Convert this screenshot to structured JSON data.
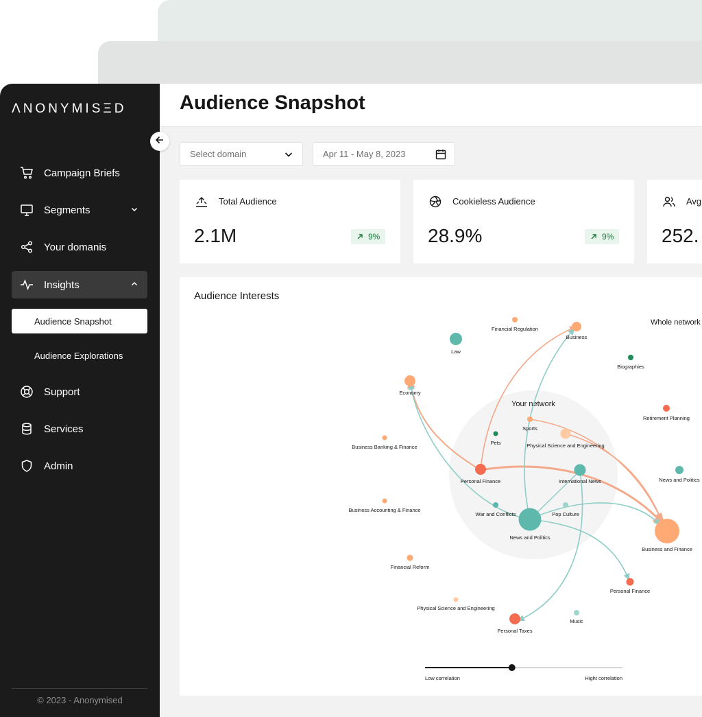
{
  "app": {
    "logo": "ΛNONYMISΞD",
    "footer": "© 2023 - Anonymised"
  },
  "sidebar": {
    "items": [
      {
        "label": "Campaign Briefs",
        "icon": "cart-icon"
      },
      {
        "label": "Segments",
        "icon": "monitor-icon",
        "expandable": true
      },
      {
        "label": "Your domanis",
        "icon": "share-icon"
      },
      {
        "label": "Insights",
        "icon": "activity-icon",
        "expanded": true,
        "active": true
      },
      {
        "label": "Support",
        "icon": "lifebuoy-icon"
      },
      {
        "label": "Services",
        "icon": "database-icon"
      },
      {
        "label": "Admin",
        "icon": "shield-icon"
      }
    ],
    "subitems": [
      {
        "label": "Audience Snapshot",
        "active": true
      },
      {
        "label": "Audience Explorations",
        "active": false
      }
    ]
  },
  "header": {
    "title": "Audience Snapshot"
  },
  "filters": {
    "domain_placeholder": "Select domain",
    "date_range": "Apr 11 - May 8, 2023"
  },
  "kpis": [
    {
      "label": "Total Audience",
      "value": "2.1M",
      "change": "9%",
      "icon": "upload-icon"
    },
    {
      "label": "Cookieless Audience",
      "value": "28.9%",
      "change": "9%",
      "icon": "aperture-icon"
    },
    {
      "label": "Avg",
      "value": "252.",
      "icon": "users-icon"
    }
  ],
  "interests": {
    "title": "Audience Interests",
    "whole_network": "Whole network",
    "your_network": "Your network",
    "slider": {
      "low": "Low correlation",
      "high": "Hight correlation",
      "value": 0.44
    },
    "colors": {
      "teal": "#5fb8ac",
      "light_teal": "#9ed4cc",
      "orange": "#ffaa74",
      "light_orange": "#ffc9a2",
      "red": "#f56b50",
      "green": "#1e8a5a"
    },
    "nodes": [
      {
        "id": "law",
        "label": "Law"
      },
      {
        "id": "finreg",
        "label": "Financial Regulation"
      },
      {
        "id": "business",
        "label": "Business"
      },
      {
        "id": "biographies",
        "label": "Biographies"
      },
      {
        "id": "economy",
        "label": "Economy"
      },
      {
        "id": "retirement",
        "label": "Retirement Planning"
      },
      {
        "id": "sports",
        "label": "Sports"
      },
      {
        "id": "pets",
        "label": "Pets"
      },
      {
        "id": "physci1",
        "label": "Physical Science and Engineering"
      },
      {
        "id": "bizbank",
        "label": "Business Banking & Finance"
      },
      {
        "id": "persfin1",
        "label": "Personal Finance"
      },
      {
        "id": "intlnews",
        "label": "International News"
      },
      {
        "id": "newspol2",
        "label": "News and Politics"
      },
      {
        "id": "bizacct",
        "label": "Business Accounting & Finance"
      },
      {
        "id": "warconf",
        "label": "War and Conflicts"
      },
      {
        "id": "popcult",
        "label": "Pop Culture"
      },
      {
        "id": "newspol",
        "label": "News and Politics"
      },
      {
        "id": "bizfin",
        "label": "Business and Finance"
      },
      {
        "id": "finref",
        "label": "Financial Reform"
      },
      {
        "id": "persfin2",
        "label": "Personal Finance"
      },
      {
        "id": "physci2",
        "label": "Physical Science and Engineering"
      },
      {
        "id": "music",
        "label": "Music"
      },
      {
        "id": "perstax",
        "label": "Personal Taxes"
      }
    ]
  }
}
